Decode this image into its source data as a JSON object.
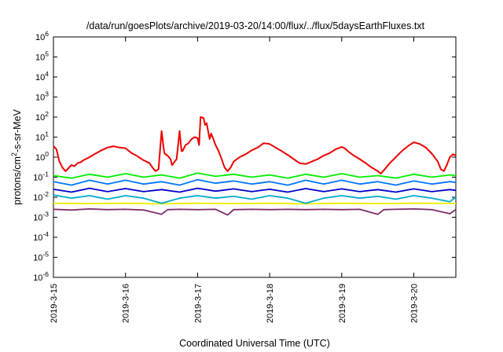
{
  "chart_data": {
    "type": "line",
    "title": "/data/run/goesPlots/archive/2019-03-20/14:00/flux/../flux/5daysEarthFluxes.txt",
    "xlabel": "Coordinated Universal Time (UTC)",
    "ylabel": "protons/cm2-s-sr-MeV",
    "ylabel_parts": {
      "base": "protons/cm",
      "sup": "2",
      "rest": "-s-sr-MeV"
    },
    "y_scale": "log",
    "ylim": [
      1e-06,
      1000000.0
    ],
    "y_ticks": [
      {
        "value": 1e-06,
        "base": "10",
        "exp": "-6"
      },
      {
        "value": 1e-05,
        "base": "10",
        "exp": "-5"
      },
      {
        "value": 0.0001,
        "base": "10",
        "exp": "-4"
      },
      {
        "value": 0.001,
        "base": "10",
        "exp": "-3"
      },
      {
        "value": 0.01,
        "base": "10",
        "exp": "-2"
      },
      {
        "value": 0.1,
        "base": "10",
        "exp": "-1"
      },
      {
        "value": 1,
        "base": "10",
        "exp": "0"
      },
      {
        "value": 10,
        "base": "10",
        "exp": "1"
      },
      {
        "value": 100,
        "base": "10",
        "exp": "2"
      },
      {
        "value": 1000,
        "base": "10",
        "exp": "3"
      },
      {
        "value": 10000,
        "base": "10",
        "exp": "4"
      },
      {
        "value": 100000,
        "base": "10",
        "exp": "5"
      },
      {
        "value": 1000000,
        "base": "10",
        "exp": "6"
      }
    ],
    "xlim": [
      "2019-03-15 00:00",
      "2019-03-20 14:00"
    ],
    "x_ticks": [
      "2019-3-15",
      "2019-3-16",
      "2019-3-17",
      "2019-3-18",
      "2019-3-19",
      "2019-3-20"
    ],
    "grid": false,
    "legend": "none",
    "series": [
      {
        "color": "#ee0000",
        "points": [
          [
            "2019-03-15 00:00",
            3.5
          ],
          [
            "2019-03-15 01:00",
            2.5
          ],
          [
            "2019-03-15 02:00",
            0.6
          ],
          [
            "2019-03-15 03:00",
            0.3
          ],
          [
            "2019-03-15 04:00",
            0.2
          ],
          [
            "2019-03-15 05:00",
            0.28
          ],
          [
            "2019-03-15 06:00",
            0.4
          ],
          [
            "2019-03-15 07:00",
            0.35
          ],
          [
            "2019-03-15 08:00",
            0.5
          ],
          [
            "2019-03-15 09:00",
            0.55
          ],
          [
            "2019-03-15 10:00",
            0.7
          ],
          [
            "2019-03-15 12:00",
            1.0
          ],
          [
            "2019-03-15 14:00",
            1.5
          ],
          [
            "2019-03-15 16:00",
            2.2
          ],
          [
            "2019-03-15 18:00",
            3.0
          ],
          [
            "2019-03-15 20:00",
            3.5
          ],
          [
            "2019-03-15 22:00",
            3.0
          ],
          [
            "2019-03-16 00:00",
            2.8
          ],
          [
            "2019-03-16 02:00",
            1.6
          ],
          [
            "2019-03-16 04:00",
            1.1
          ],
          [
            "2019-03-16 06:00",
            0.7
          ],
          [
            "2019-03-16 07:00",
            0.6
          ],
          [
            "2019-03-16 08:00",
            0.5
          ],
          [
            "2019-03-16 09:00",
            0.3
          ],
          [
            "2019-03-16 10:00",
            0.2
          ],
          [
            "2019-03-16 11:00",
            0.25
          ],
          [
            "2019-03-16 12:00",
            20
          ],
          [
            "2019-03-16 12:40",
            3
          ],
          [
            "2019-03-16 13:00",
            1.5
          ],
          [
            "2019-03-16 14:00",
            1.2
          ],
          [
            "2019-03-16 15:00",
            0.8
          ],
          [
            "2019-03-16 15:30",
            0.4
          ],
          [
            "2019-03-16 16:00",
            0.5
          ],
          [
            "2019-03-16 17:00",
            0.8
          ],
          [
            "2019-03-16 18:00",
            20
          ],
          [
            "2019-03-16 18:40",
            2
          ],
          [
            "2019-03-16 19:00",
            2.0
          ],
          [
            "2019-03-16 20:00",
            4
          ],
          [
            "2019-03-16 21:00",
            5
          ],
          [
            "2019-03-16 22:00",
            8
          ],
          [
            "2019-03-16 23:00",
            10
          ],
          [
            "2019-03-17 00:00",
            9
          ],
          [
            "2019-03-17 00:30",
            4
          ],
          [
            "2019-03-17 01:00",
            100
          ],
          [
            "2019-03-17 02:00",
            90
          ],
          [
            "2019-03-17 02:30",
            40
          ],
          [
            "2019-03-17 03:00",
            50
          ],
          [
            "2019-03-17 04:00",
            8
          ],
          [
            "2019-03-17 04:30",
            15
          ],
          [
            "2019-03-17 05:00",
            10
          ],
          [
            "2019-03-17 06:00",
            4
          ],
          [
            "2019-03-17 07:00",
            2
          ],
          [
            "2019-03-17 08:00",
            0.8
          ],
          [
            "2019-03-17 09:00",
            0.3
          ],
          [
            "2019-03-17 10:00",
            0.2
          ],
          [
            "2019-03-17 11:00",
            0.3
          ],
          [
            "2019-03-17 12:00",
            0.6
          ],
          [
            "2019-03-17 14:00",
            1.0
          ],
          [
            "2019-03-17 16:00",
            1.4
          ],
          [
            "2019-03-17 18:00",
            2.2
          ],
          [
            "2019-03-17 20:00",
            3.0
          ],
          [
            "2019-03-17 22:00",
            5.0
          ],
          [
            "2019-03-18 00:00",
            4.5
          ],
          [
            "2019-03-18 02:00",
            3.0
          ],
          [
            "2019-03-18 04:00",
            2.0
          ],
          [
            "2019-03-18 06:00",
            1.3
          ],
          [
            "2019-03-18 08:00",
            0.8
          ],
          [
            "2019-03-18 10:00",
            0.5
          ],
          [
            "2019-03-18 12:00",
            0.45
          ],
          [
            "2019-03-18 14:00",
            0.6
          ],
          [
            "2019-03-18 16:00",
            0.8
          ],
          [
            "2019-03-18 18:00",
            1.2
          ],
          [
            "2019-03-18 20:00",
            1.6
          ],
          [
            "2019-03-18 22:00",
            2.5
          ],
          [
            "2019-03-19 00:00",
            3.2
          ],
          [
            "2019-03-19 01:00",
            2.8
          ],
          [
            "2019-03-19 02:00",
            2.0
          ],
          [
            "2019-03-19 04:00",
            1.2
          ],
          [
            "2019-03-19 06:00",
            0.8
          ],
          [
            "2019-03-19 08:00",
            0.5
          ],
          [
            "2019-03-19 10:00",
            0.3
          ],
          [
            "2019-03-19 12:00",
            0.2
          ],
          [
            "2019-03-19 13:00",
            0.15
          ],
          [
            "2019-03-19 14:00",
            0.22
          ],
          [
            "2019-03-19 16:00",
            0.5
          ],
          [
            "2019-03-19 18:00",
            1.0
          ],
          [
            "2019-03-19 20:00",
            2.0
          ],
          [
            "2019-03-19 22:00",
            3.5
          ],
          [
            "2019-03-20 00:00",
            5.5
          ],
          [
            "2019-03-20 02:00",
            4.5
          ],
          [
            "2019-03-20 04:00",
            3.0
          ],
          [
            "2019-03-20 06:00",
            1.5
          ],
          [
            "2019-03-20 08:00",
            0.6
          ],
          [
            "2019-03-20 09:00",
            0.25
          ],
          [
            "2019-03-20 10:00",
            0.2
          ],
          [
            "2019-03-20 11:00",
            0.4
          ],
          [
            "2019-03-20 12:00",
            1.0
          ],
          [
            "2019-03-20 13:00",
            1.4
          ],
          [
            "2019-03-20 14:00",
            1.2
          ]
        ]
      },
      {
        "color": "#00ee00",
        "points": [
          [
            "2019-03-15 00:00",
            0.12
          ],
          [
            "2019-03-15 06:00",
            0.09
          ],
          [
            "2019-03-15 12:00",
            0.14
          ],
          [
            "2019-03-15 18:00",
            0.1
          ],
          [
            "2019-03-16 00:00",
            0.15
          ],
          [
            "2019-03-16 06:00",
            0.1
          ],
          [
            "2019-03-16 12:00",
            0.13
          ],
          [
            "2019-03-16 18:00",
            0.09
          ],
          [
            "2019-03-17 00:00",
            0.16
          ],
          [
            "2019-03-17 06:00",
            0.11
          ],
          [
            "2019-03-17 12:00",
            0.14
          ],
          [
            "2019-03-17 18:00",
            0.1
          ],
          [
            "2019-03-18 00:00",
            0.13
          ],
          [
            "2019-03-18 06:00",
            0.09
          ],
          [
            "2019-03-18 12:00",
            0.14
          ],
          [
            "2019-03-18 18:00",
            0.1
          ],
          [
            "2019-03-19 00:00",
            0.15
          ],
          [
            "2019-03-19 06:00",
            0.1
          ],
          [
            "2019-03-19 12:00",
            0.12
          ],
          [
            "2019-03-19 18:00",
            0.09
          ],
          [
            "2019-03-20 00:00",
            0.14
          ],
          [
            "2019-03-20 06:00",
            0.1
          ],
          [
            "2019-03-20 12:00",
            0.13
          ],
          [
            "2019-03-20 14:00",
            0.12
          ]
        ]
      },
      {
        "color": "#0077ff",
        "points": [
          [
            "2019-03-15 00:00",
            0.06
          ],
          [
            "2019-03-15 06:00",
            0.04
          ],
          [
            "2019-03-15 12:00",
            0.07
          ],
          [
            "2019-03-15 18:00",
            0.045
          ],
          [
            "2019-03-16 00:00",
            0.07
          ],
          [
            "2019-03-16 06:00",
            0.045
          ],
          [
            "2019-03-16 12:00",
            0.06
          ],
          [
            "2019-03-16 18:00",
            0.04
          ],
          [
            "2019-03-17 00:00",
            0.075
          ],
          [
            "2019-03-17 06:00",
            0.05
          ],
          [
            "2019-03-17 12:00",
            0.065
          ],
          [
            "2019-03-17 18:00",
            0.045
          ],
          [
            "2019-03-18 00:00",
            0.06
          ],
          [
            "2019-03-18 06:00",
            0.04
          ],
          [
            "2019-03-18 12:00",
            0.07
          ],
          [
            "2019-03-18 18:00",
            0.045
          ],
          [
            "2019-03-19 00:00",
            0.07
          ],
          [
            "2019-03-19 06:00",
            0.045
          ],
          [
            "2019-03-19 12:00",
            0.06
          ],
          [
            "2019-03-19 18:00",
            0.04
          ],
          [
            "2019-03-20 00:00",
            0.065
          ],
          [
            "2019-03-20 06:00",
            0.045
          ],
          [
            "2019-03-20 12:00",
            0.06
          ],
          [
            "2019-03-20 14:00",
            0.055
          ]
        ]
      },
      {
        "color": "#0000cc",
        "points": [
          [
            "2019-03-15 00:00",
            0.025
          ],
          [
            "2019-03-15 06:00",
            0.018
          ],
          [
            "2019-03-15 12:00",
            0.028
          ],
          [
            "2019-03-15 18:00",
            0.019
          ],
          [
            "2019-03-16 00:00",
            0.027
          ],
          [
            "2019-03-16 06:00",
            0.019
          ],
          [
            "2019-03-16 12:00",
            0.024
          ],
          [
            "2019-03-16 18:00",
            0.018
          ],
          [
            "2019-03-17 00:00",
            0.028
          ],
          [
            "2019-03-17 06:00",
            0.02
          ],
          [
            "2019-03-17 12:00",
            0.026
          ],
          [
            "2019-03-17 18:00",
            0.019
          ],
          [
            "2019-03-18 00:00",
            0.025
          ],
          [
            "2019-03-18 06:00",
            0.018
          ],
          [
            "2019-03-18 12:00",
            0.027
          ],
          [
            "2019-03-18 18:00",
            0.019
          ],
          [
            "2019-03-19 00:00",
            0.026
          ],
          [
            "2019-03-19 06:00",
            0.019
          ],
          [
            "2019-03-19 12:00",
            0.024
          ],
          [
            "2019-03-19 18:00",
            0.018
          ],
          [
            "2019-03-20 00:00",
            0.026
          ],
          [
            "2019-03-20 06:00",
            0.019
          ],
          [
            "2019-03-20 12:00",
            0.024
          ],
          [
            "2019-03-20 14:00",
            0.022
          ]
        ]
      },
      {
        "color": "#00aacc",
        "points": [
          [
            "2019-03-15 00:00",
            0.013
          ],
          [
            "2019-03-15 06:00",
            0.009
          ],
          [
            "2019-03-15 12:00",
            0.012
          ],
          [
            "2019-03-15 18:00",
            0.008
          ],
          [
            "2019-03-16 00:00",
            0.012
          ],
          [
            "2019-03-16 06:00",
            0.009
          ],
          [
            "2019-03-16 12:00",
            0.005
          ],
          [
            "2019-03-16 18:00",
            0.009
          ],
          [
            "2019-03-17 00:00",
            0.012
          ],
          [
            "2019-03-17 06:00",
            0.009
          ],
          [
            "2019-03-17 12:00",
            0.011
          ],
          [
            "2019-03-17 18:00",
            0.008
          ],
          [
            "2019-03-18 00:00",
            0.012
          ],
          [
            "2019-03-18 06:00",
            0.009
          ],
          [
            "2019-03-18 12:00",
            0.005
          ],
          [
            "2019-03-18 18:00",
            0.009
          ],
          [
            "2019-03-19 00:00",
            0.012
          ],
          [
            "2019-03-19 06:00",
            0.009
          ],
          [
            "2019-03-19 12:00",
            0.011
          ],
          [
            "2019-03-19 18:00",
            0.008
          ],
          [
            "2019-03-20 00:00",
            0.012
          ],
          [
            "2019-03-20 06:00",
            0.009
          ],
          [
            "2019-03-20 12:00",
            0.006
          ],
          [
            "2019-03-20 14:00",
            0.01
          ]
        ]
      },
      {
        "color": "#eeee00",
        "points": [
          [
            "2019-03-15 00:00",
            0.005
          ],
          [
            "2019-03-15 12:00",
            0.0048
          ],
          [
            "2019-03-16 00:00",
            0.005
          ],
          [
            "2019-03-16 12:00",
            0.0047
          ],
          [
            "2019-03-17 00:00",
            0.005
          ],
          [
            "2019-03-17 12:00",
            0.0048
          ],
          [
            "2019-03-18 00:00",
            0.005
          ],
          [
            "2019-03-18 12:00",
            0.0047
          ],
          [
            "2019-03-19 00:00",
            0.005
          ],
          [
            "2019-03-19 12:00",
            0.0048
          ],
          [
            "2019-03-20 00:00",
            0.005
          ],
          [
            "2019-03-20 14:00",
            0.0049
          ]
        ]
      },
      {
        "color": "#7b2d6b",
        "points": [
          [
            "2019-03-15 00:00",
            0.0025
          ],
          [
            "2019-03-15 06:00",
            0.0023
          ],
          [
            "2019-03-15 12:00",
            0.0026
          ],
          [
            "2019-03-15 18:00",
            0.0024
          ],
          [
            "2019-03-16 00:00",
            0.0025
          ],
          [
            "2019-03-16 06:00",
            0.0023
          ],
          [
            "2019-03-16 12:00",
            0.0014
          ],
          [
            "2019-03-16 14:00",
            0.0024
          ],
          [
            "2019-03-16 18:00",
            0.0025
          ],
          [
            "2019-03-17 00:00",
            0.0024
          ],
          [
            "2019-03-17 06:00",
            0.0025
          ],
          [
            "2019-03-17 10:00",
            0.0013
          ],
          [
            "2019-03-17 12:00",
            0.0024
          ],
          [
            "2019-03-17 18:00",
            0.0025
          ],
          [
            "2019-03-18 00:00",
            0.0024
          ],
          [
            "2019-03-18 06:00",
            0.0025
          ],
          [
            "2019-03-18 12:00",
            0.0024
          ],
          [
            "2019-03-18 18:00",
            0.0025
          ],
          [
            "2019-03-19 00:00",
            0.0024
          ],
          [
            "2019-03-19 06:00",
            0.0025
          ],
          [
            "2019-03-19 12:00",
            0.0014
          ],
          [
            "2019-03-19 14:00",
            0.0024
          ],
          [
            "2019-03-19 18:00",
            0.0025
          ],
          [
            "2019-03-20 00:00",
            0.0026
          ],
          [
            "2019-03-20 06:00",
            0.0024
          ],
          [
            "2019-03-20 12:00",
            0.0015
          ],
          [
            "2019-03-20 14:00",
            0.0024
          ]
        ]
      }
    ]
  }
}
